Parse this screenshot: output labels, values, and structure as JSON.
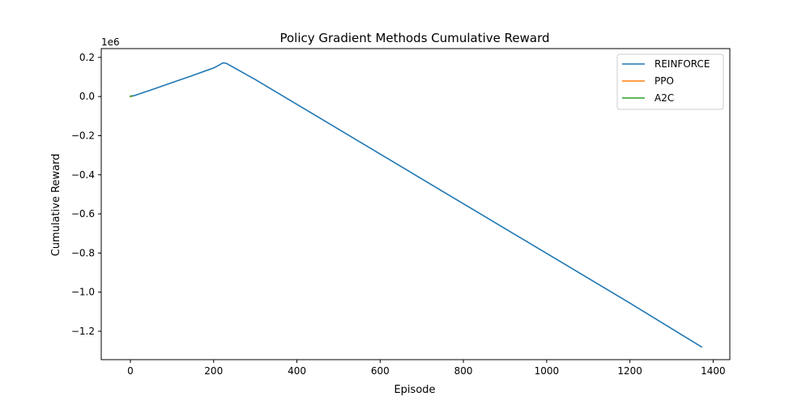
{
  "chart_data": {
    "type": "line",
    "title": "Policy Gradient Methods Cumulative Reward",
    "xlabel": "Episode",
    "ylabel": "Cumulative Reward",
    "y_scale_label": "1e6",
    "xlim": [
      -70,
      1440
    ],
    "ylim": [
      -1.345,
      0.245
    ],
    "x_ticks": [
      0,
      200,
      400,
      600,
      800,
      1000,
      1200,
      1400
    ],
    "x_tick_labels": [
      "0",
      "200",
      "400",
      "600",
      "800",
      "1000",
      "1200",
      "1400"
    ],
    "y_ticks": [
      0.2,
      0.0,
      -0.2,
      -0.4,
      -0.6,
      -0.8,
      -1.0,
      -1.2
    ],
    "y_tick_labels": [
      "0.2",
      "0.0",
      "−0.2",
      "−0.4",
      "−0.6",
      "−0.8",
      "−1.0",
      "−1.2"
    ],
    "grid": false,
    "legend_position": "top-right",
    "series": [
      {
        "name": "REINFORCE",
        "color": "#1f77b4",
        "x": [
          0,
          3,
          8,
          50,
          100,
          150,
          200,
          215,
          222,
          230,
          300,
          400,
          600,
          800,
          1000,
          1200,
          1372
        ],
        "y": [
          0.0,
          0.002,
          0.004,
          0.034,
          0.071,
          0.108,
          0.146,
          0.163,
          0.172,
          0.17,
          0.087,
          -0.04,
          -0.294,
          -0.548,
          -0.802,
          -1.056,
          -1.28
        ]
      },
      {
        "name": "PPO",
        "color": "#ff7f0e",
        "x": [
          0,
          1,
          2,
          3,
          4
        ],
        "y": [
          0.0,
          0.002,
          0.001,
          0.003,
          0.002
        ]
      },
      {
        "name": "A2C",
        "color": "#2ca02c",
        "x": [
          0,
          1,
          2,
          3,
          4
        ],
        "y": [
          0.001,
          0.003,
          0.002,
          0.004,
          0.003
        ]
      }
    ]
  }
}
